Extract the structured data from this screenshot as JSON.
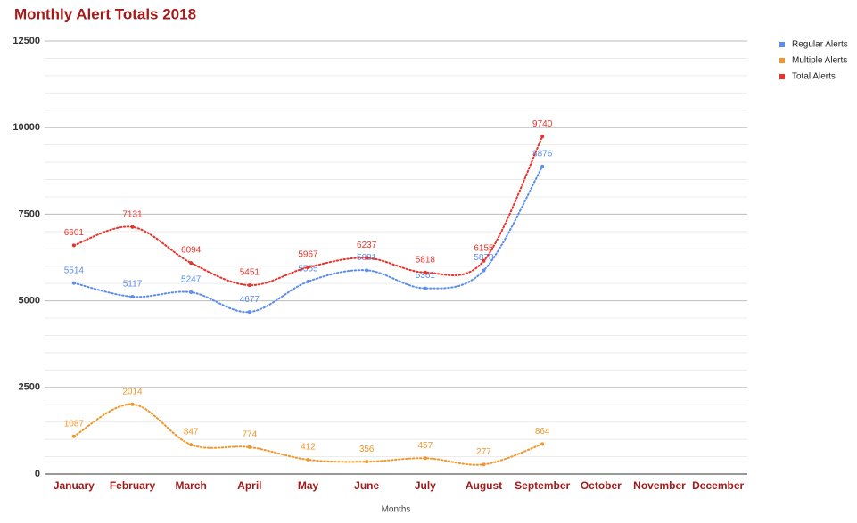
{
  "chart_data": {
    "type": "line",
    "title": "Monthly Alert Totals 2018",
    "x_label": "Months",
    "categories": [
      "January",
      "February",
      "March",
      "April",
      "May",
      "June",
      "July",
      "August",
      "September",
      "October",
      "November",
      "December"
    ],
    "series": [
      {
        "name": "Regular Alerts",
        "color": "#5b8def",
        "values": [
          5514,
          5117,
          5247,
          4677,
          5555,
          5881,
          5361,
          5878,
          8876,
          null,
          null,
          null
        ]
      },
      {
        "name": "Multiple Alerts",
        "color": "#f2962b",
        "values": [
          1087,
          2014,
          847,
          774,
          412,
          356,
          457,
          277,
          864,
          null,
          null,
          null
        ]
      },
      {
        "name": "Total Alerts",
        "color": "#e8332b",
        "values": [
          6601,
          7131,
          6094,
          5451,
          5967,
          6237,
          5818,
          6155,
          9740,
          null,
          null,
          null
        ]
      }
    ],
    "ylim": [
      0,
      12500
    ],
    "yticks": [
      0,
      2500,
      5000,
      7500,
      10000,
      12500
    ],
    "grid": true,
    "minor_grid_divisions": 5,
    "legend": "top-right",
    "smooth": true,
    "line_style": "dotted"
  }
}
